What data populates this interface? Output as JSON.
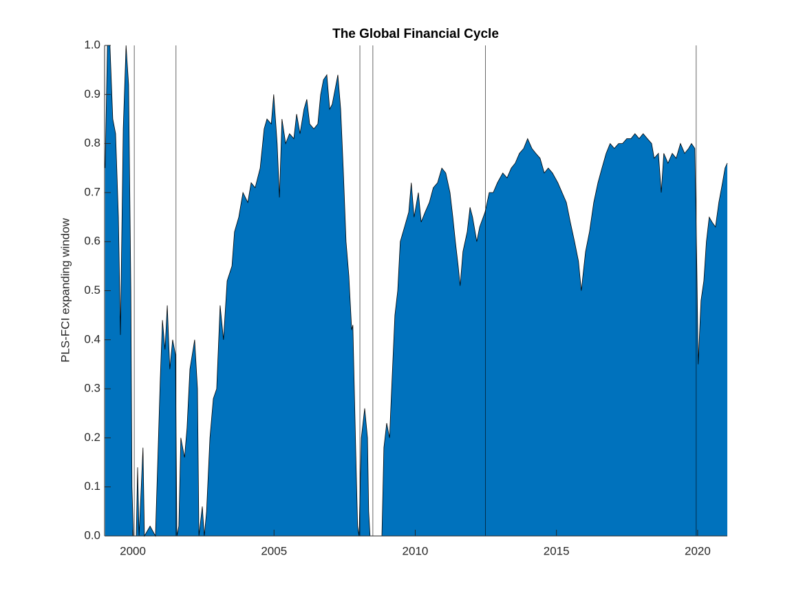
{
  "chart_data": {
    "type": "area",
    "title": "The Global Financial Cycle",
    "ylabel": "PLS-FCI expanding window",
    "color": "#0072bd",
    "edge_color": "#000000",
    "vline_color": "#000000",
    "x": [
      1999.02,
      1999.1,
      1999.19,
      1999.29,
      1999.39,
      1999.49,
      1999.56,
      1999.66,
      1999.76,
      1999.85,
      1999.93,
      1999.97,
      2000.02,
      2000.12,
      2000.17,
      2000.22,
      2000.32,
      2000.36,
      2000.41,
      2000.61,
      2000.8,
      2000.88,
      2000.97,
      2001.05,
      2001.14,
      2001.22,
      2001.31,
      2001.41,
      2001.51,
      2001.56,
      2001.63,
      2001.7,
      2001.83,
      2001.92,
      2002.02,
      2002.19,
      2002.29,
      2002.34,
      2002.46,
      2002.53,
      2002.61,
      2002.73,
      2002.85,
      2002.97,
      2003.09,
      2003.21,
      2003.34,
      2003.51,
      2003.6,
      2003.75,
      2003.9,
      2004.07,
      2004.19,
      2004.33,
      2004.51,
      2004.65,
      2004.75,
      2004.9,
      2004.99,
      2005.11,
      2005.19,
      2005.28,
      2005.41,
      2005.55,
      2005.7,
      2005.8,
      2005.92,
      2006.06,
      2006.16,
      2006.26,
      2006.41,
      2006.55,
      2006.65,
      2006.75,
      2006.87,
      2006.97,
      2007.06,
      2007.16,
      2007.26,
      2007.36,
      2007.45,
      2007.55,
      2007.65,
      2007.75,
      2007.79,
      2007.89,
      2007.96,
      2008.01,
      2008.09,
      2008.21,
      2008.31,
      2008.35,
      2008.4,
      2008.82,
      2008.89,
      2008.99,
      2009.09,
      2009.18,
      2009.28,
      2009.38,
      2009.47,
      2009.62,
      2009.77,
      2009.86,
      2009.96,
      2010.11,
      2010.21,
      2010.35,
      2010.5,
      2010.64,
      2010.79,
      2010.94,
      2011.08,
      2011.23,
      2011.33,
      2011.42,
      2011.52,
      2011.59,
      2011.69,
      2011.84,
      2011.94,
      2012.03,
      2012.18,
      2012.28,
      2012.47,
      2012.62,
      2012.76,
      2012.91,
      2013.1,
      2013.25,
      2013.4,
      2013.54,
      2013.69,
      2013.84,
      2013.98,
      2014.13,
      2014.27,
      2014.42,
      2014.57,
      2014.71,
      2014.86,
      2015.05,
      2015.2,
      2015.35,
      2015.49,
      2015.64,
      2015.78,
      2015.88,
      2016.03,
      2016.17,
      2016.32,
      2016.47,
      2016.61,
      2016.76,
      2016.9,
      2017.05,
      2017.2,
      2017.34,
      2017.49,
      2017.64,
      2017.78,
      2017.93,
      2018.07,
      2018.22,
      2018.37,
      2018.46,
      2018.61,
      2018.71,
      2018.8,
      2018.95,
      2019.1,
      2019.24,
      2019.39,
      2019.54,
      2019.68,
      2019.78,
      2019.9,
      2019.97,
      2020.02,
      2020.12,
      2020.22,
      2020.31,
      2020.41,
      2020.51,
      2020.63,
      2020.75,
      2020.88,
      2020.97,
      2021.05
    ],
    "values": [
      0.75,
      1.0,
      1.0,
      0.85,
      0.82,
      0.65,
      0.41,
      0.83,
      1.0,
      0.92,
      0.5,
      0.1,
      0,
      0,
      0.14,
      0,
      0.13,
      0.18,
      0,
      0.02,
      0,
      0.15,
      0.32,
      0.44,
      0.38,
      0.47,
      0.34,
      0.4,
      0.37,
      0,
      0.02,
      0.2,
      0.16,
      0.22,
      0.34,
      0.4,
      0.3,
      0,
      0.06,
      0,
      0.05,
      0.2,
      0.28,
      0.3,
      0.47,
      0.4,
      0.52,
      0.55,
      0.62,
      0.65,
      0.7,
      0.68,
      0.72,
      0.71,
      0.75,
      0.83,
      0.85,
      0.84,
      0.9,
      0.8,
      0.69,
      0.85,
      0.8,
      0.82,
      0.81,
      0.86,
      0.82,
      0.87,
      0.89,
      0.84,
      0.83,
      0.84,
      0.9,
      0.93,
      0.94,
      0.87,
      0.88,
      0.91,
      0.94,
      0.87,
      0.75,
      0.6,
      0.53,
      0.42,
      0.43,
      0.18,
      0.02,
      0,
      0.2,
      0.26,
      0.2,
      0.05,
      0,
      0,
      0.18,
      0.23,
      0.2,
      0.32,
      0.45,
      0.5,
      0.6,
      0.63,
      0.66,
      0.72,
      0.65,
      0.7,
      0.64,
      0.66,
      0.68,
      0.71,
      0.72,
      0.75,
      0.74,
      0.7,
      0.65,
      0.6,
      0.55,
      0.51,
      0.58,
      0.62,
      0.67,
      0.65,
      0.6,
      0.63,
      0.66,
      0.7,
      0.7,
      0.72,
      0.74,
      0.73,
      0.75,
      0.76,
      0.78,
      0.79,
      0.81,
      0.79,
      0.78,
      0.77,
      0.74,
      0.75,
      0.74,
      0.72,
      0.7,
      0.68,
      0.64,
      0.6,
      0.56,
      0.5,
      0.58,
      0.62,
      0.68,
      0.72,
      0.75,
      0.78,
      0.8,
      0.79,
      0.8,
      0.8,
      0.81,
      0.81,
      0.82,
      0.81,
      0.82,
      0.81,
      0.8,
      0.77,
      0.78,
      0.7,
      0.78,
      0.76,
      0.78,
      0.77,
      0.8,
      0.78,
      0.79,
      0.8,
      0.79,
      0.55,
      0.35,
      0.48,
      0.52,
      0.6,
      0.65,
      0.64,
      0.63,
      0.68,
      0.72,
      0.75,
      0.76
    ],
    "vlines": [
      2000.05,
      2001.53,
      2008.04,
      2008.5,
      2012.49,
      2019.95
    ],
    "xlim": [
      1999.0,
      2021.05
    ],
    "xticks": [
      2000,
      2005,
      2010,
      2015,
      2020
    ],
    "ylim": [
      0,
      1
    ],
    "yticks": [
      {
        "value": 0,
        "label": "0.0"
      },
      0.1,
      0.2,
      0.3,
      0.4,
      0.5,
      0.6,
      0.7,
      0.8,
      0.9,
      {
        "value": 1,
        "label": "1.0"
      }
    ]
  }
}
